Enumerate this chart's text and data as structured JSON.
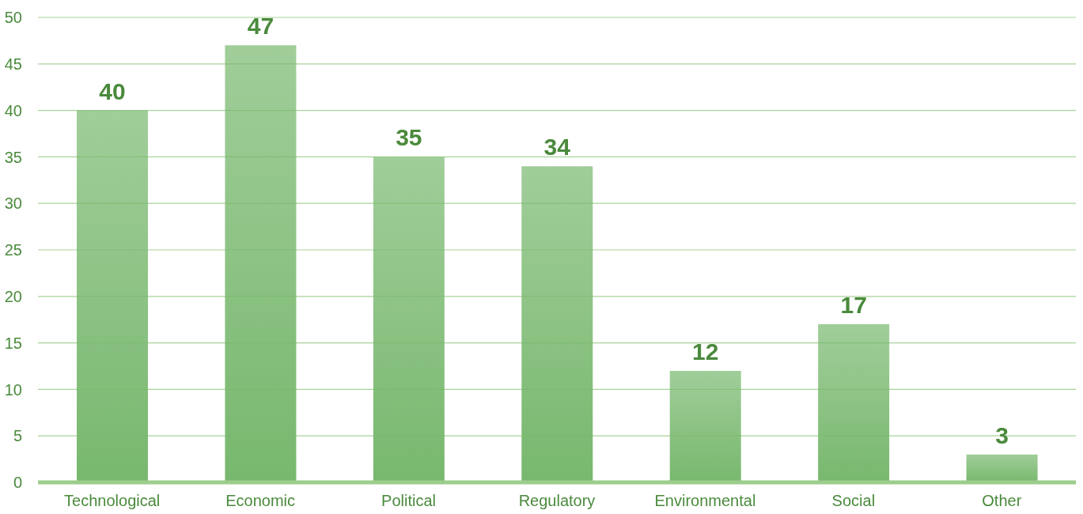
{
  "chart_data": {
    "type": "bar",
    "categories": [
      "Technological",
      "Economic",
      "Political",
      "Regulatory",
      "Environmental",
      "Social",
      "Other"
    ],
    "values": [
      40,
      47,
      35,
      34,
      12,
      17,
      3
    ],
    "color": "#78b86e",
    "ylim": [
      0,
      50
    ],
    "yticks": [
      0,
      5,
      10,
      15,
      20,
      25,
      30,
      35,
      40,
      45,
      50
    ],
    "grid": "y",
    "data_labels": true
  }
}
